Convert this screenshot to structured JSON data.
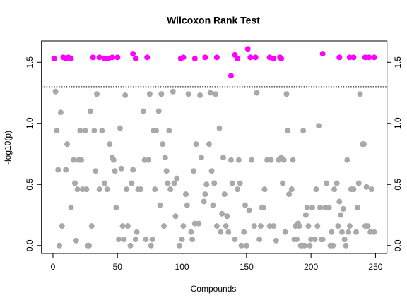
{
  "chart_data": {
    "type": "scatter",
    "title": "Wilcoxon Rank Test",
    "xlabel": "Compounds",
    "ylabel": "-log10(p)",
    "xlim": [
      -8.9,
      258.9
    ],
    "xticks": [
      0,
      50,
      100,
      150,
      200,
      250
    ],
    "ylim": [
      -0.065,
      1.675
    ],
    "yticks": [
      {
        "value": 0,
        "label": "0.0"
      },
      {
        "value": 0.5,
        "label": "0.5"
      },
      {
        "value": 1,
        "label": "1.0"
      },
      {
        "value": 1.5,
        "label": "1.5"
      }
    ],
    "y2lim": [
      -0.065,
      1.675
    ],
    "y2ticks": [
      {
        "value": 0,
        "label": "0.0"
      },
      {
        "value": 0.5,
        "label": "0.5"
      },
      {
        "value": 1,
        "label": "1.0"
      },
      {
        "value": 1.5,
        "label": "1.5"
      }
    ],
    "threshold": 1.3,
    "series": [
      {
        "color": "#ff00ff",
        "x": [
          1,
          8,
          10,
          12,
          14,
          31,
          36,
          40,
          43,
          46,
          50,
          62,
          64,
          73,
          99,
          101,
          110,
          118,
          127,
          138,
          141,
          143,
          151,
          153,
          157,
          168,
          171,
          176,
          177,
          209,
          222,
          230,
          233,
          242,
          245,
          249
        ],
        "values": [
          1.53,
          1.54,
          1.53,
          1.54,
          1.53,
          1.54,
          1.54,
          1.53,
          1.53,
          1.54,
          1.54,
          1.57,
          1.53,
          1.54,
          1.53,
          1.54,
          1.53,
          1.54,
          1.54,
          1.39,
          1.56,
          1.53,
          1.61,
          1.54,
          1.54,
          1.54,
          1.53,
          1.54,
          1.53,
          1.57,
          1.54,
          1.54,
          1.54,
          1.54,
          1.54,
          1.54
        ]
      },
      {
        "color": "#a9a9a9",
        "x": [
          2,
          3,
          4,
          5,
          6,
          7,
          10,
          11,
          14,
          16,
          17,
          18,
          19,
          20,
          21,
          22,
          23,
          25,
          26,
          27,
          28,
          29,
          30,
          32,
          33,
          34,
          36,
          38,
          40,
          42,
          44,
          46,
          47,
          48,
          49,
          51,
          52,
          53,
          54,
          55,
          56,
          57,
          58,
          60,
          61,
          62,
          64,
          65,
          66,
          68,
          70,
          71,
          72,
          74,
          75,
          76,
          77,
          78,
          79,
          80,
          82,
          83,
          84,
          85,
          86,
          87,
          88,
          89,
          90,
          91,
          93,
          94,
          95,
          96,
          98,
          100,
          101,
          103,
          104,
          105,
          107,
          108,
          109,
          110,
          111,
          113,
          114,
          115,
          117,
          118,
          119,
          121,
          122,
          123,
          124,
          125,
          126,
          127,
          129,
          130,
          131,
          132,
          133,
          134,
          135,
          136,
          138,
          139,
          141,
          143,
          144,
          145,
          146,
          148,
          149,
          150,
          152,
          154,
          156,
          158,
          160,
          161,
          162,
          163,
          164,
          166,
          168,
          169,
          171,
          173,
          175,
          177,
          178,
          179,
          180,
          181,
          182,
          183,
          185,
          186,
          187,
          188,
          189,
          190,
          191,
          192,
          193,
          194,
          195,
          196,
          197,
          198,
          199,
          200,
          201,
          203,
          204,
          205,
          206,
          207,
          208,
          209,
          211,
          212,
          213,
          214,
          215,
          216,
          217,
          218,
          220,
          221,
          222,
          223,
          224,
          225,
          226,
          227,
          228,
          229,
          230,
          231,
          233,
          235,
          236,
          237,
          238,
          240,
          241,
          242,
          243,
          244,
          246,
          247,
          249
        ],
        "values": [
          1.26,
          0.94,
          0.62,
          0,
          1.09,
          0.16,
          0.62,
          0.83,
          0.31,
          0.7,
          0.51,
          0.04,
          0.46,
          0.7,
          0.94,
          0.7,
          0.46,
          0.94,
          0.46,
          0,
          0,
          1.1,
          0.16,
          0.94,
          0.61,
          1.24,
          0.46,
          0.94,
          0.51,
          0.46,
          0.83,
          0.72,
          0.7,
          0.61,
          0.31,
          0.05,
          0.96,
          0.63,
          0.16,
          0.05,
          1.23,
          0.46,
          0.16,
          0,
          0.51,
          0.62,
          0.05,
          0.11,
          0.46,
          0.46,
          1.1,
          0.7,
          0.05,
          0.7,
          1.24,
          0,
          0.05,
          0.94,
          0.46,
          0.94,
          1.1,
          0.33,
          1.24,
          0.83,
          0.16,
          0.72,
          0.61,
          0.51,
          0.94,
          0.46,
          1.26,
          0.51,
          0.24,
          0.55,
          0,
          0.05,
          0.16,
          0.42,
          0.33,
          1.24,
          0.11,
          0.05,
          0.61,
          0.18,
          0.83,
          0.18,
          1.23,
          0.72,
          0.36,
          0.42,
          0.5,
          0.83,
          1.25,
          0.61,
          0.33,
          0.51,
          1.24,
          0.16,
          0.96,
          0.11,
          0.26,
          0.72,
          0.42,
          0.16,
          0.24,
          0.11,
          0.7,
          0.51,
          0.05,
          0.46,
          0.7,
          0.51,
          0,
          0.11,
          0.33,
          0,
          0.29,
          0.7,
          0.16,
          1.25,
          0.05,
          0.16,
          0.31,
          0.31,
          0.46,
          0.7,
          0.16,
          0.7,
          0.16,
          0.04,
          0.7,
          0.72,
          0.51,
          0.7,
          0.11,
          1.24,
          0.94,
          0.42,
          0.46,
          0.7,
          0.05,
          0.16,
          0.05,
          0.18,
          0.16,
          0,
          0,
          0.94,
          0,
          0.25,
          0.31,
          0.16,
          0,
          0.05,
          0.31,
          0.05,
          0.46,
          0.16,
          0.98,
          0.31,
          0.05,
          0.05,
          0.31,
          0.51,
          0.31,
          0.31,
          0,
          0.11,
          0,
          0.46,
          0.51,
          0.16,
          0.36,
          0.25,
          0.11,
          0.3,
          0.05,
          0,
          0.7,
          0.11,
          0.16,
          0.46,
          0.46,
          0.11,
          0.31,
          0.51,
          1.24,
          0.83,
          0.83,
          0.16,
          0.48,
          0.16,
          0.11,
          0.46,
          0.11
        ]
      }
    ]
  }
}
